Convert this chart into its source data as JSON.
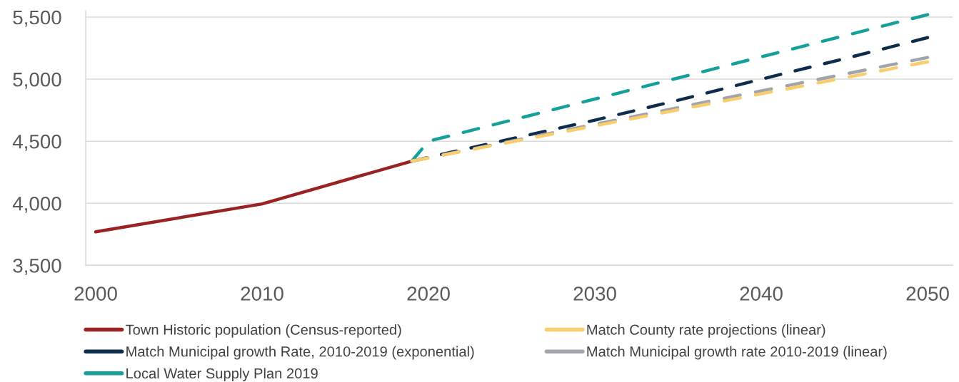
{
  "chart_data": {
    "type": "line",
    "series": [
      {
        "name": "Town Historic population (Census-reported)",
        "color": "#9b2222",
        "line_style": "solid",
        "x": [
          2000,
          2010,
          2019
        ],
        "values": [
          3770,
          3995,
          4340
        ]
      },
      {
        "name": "Match Municipal growth Rate, 2010-2019 (exponential)",
        "color": "#0e2d4c",
        "line_style": "dashed",
        "x": [
          2019,
          2020,
          2025,
          2030,
          2035,
          2040,
          2045,
          2050
        ],
        "values": [
          4340,
          4370,
          4520,
          4670,
          4830,
          5000,
          5165,
          5335
        ]
      },
      {
        "name": "Local Water Supply Plan 2019",
        "color": "#16a09c",
        "line_style": "dashed",
        "x": [
          2019,
          2020,
          2050
        ],
        "values": [
          4340,
          4500,
          5520
        ]
      },
      {
        "name": "Match County rate projections (linear)",
        "color": "#f8cd6c",
        "line_style": "dashed",
        "x": [
          2019,
          2050
        ],
        "values": [
          4340,
          5140
        ]
      },
      {
        "name": "Match Municipal growth rate 2010-2019 (linear)",
        "color": "#a2a4ab",
        "line_style": "dashed",
        "x": [
          2019,
          2050
        ],
        "values": [
          4340,
          5175
        ]
      }
    ],
    "xlim": [
      1999.4,
      2051.5
    ],
    "xticks": [
      2000,
      2010,
      2020,
      2030,
      2040,
      2050
    ],
    "ylim": [
      3500,
      5550
    ],
    "yticks": [
      {
        "value": 3500,
        "label": "3,500"
      },
      {
        "value": 4000,
        "label": "4,000"
      },
      {
        "value": 4500,
        "label": "4,500"
      },
      {
        "value": 5000,
        "label": "5,000"
      },
      {
        "value": 5500,
        "label": "5,500"
      }
    ],
    "grid": "y",
    "legend": "bottom"
  }
}
